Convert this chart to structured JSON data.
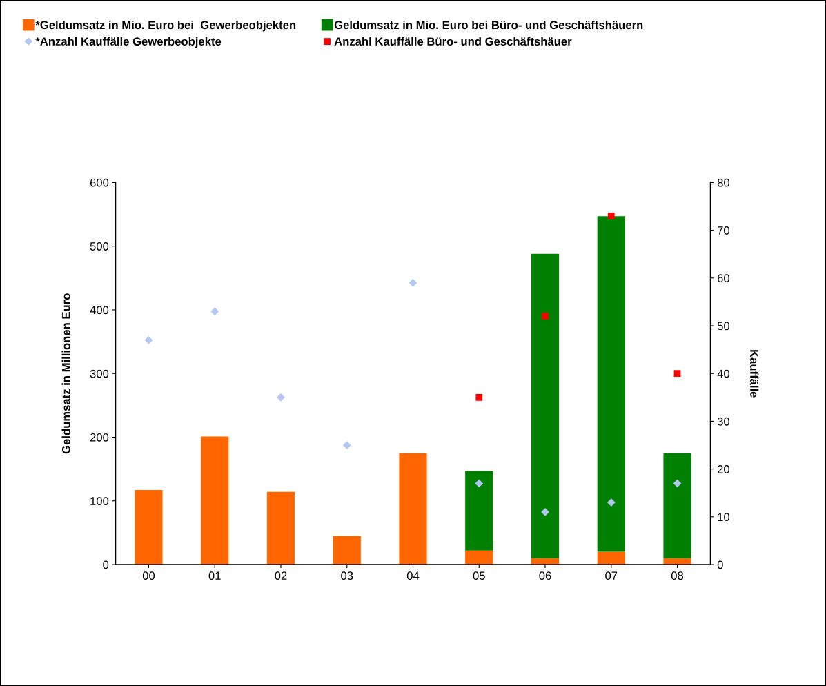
{
  "chart_data": {
    "type": "bar",
    "stacked": true,
    "categories": [
      "00",
      "01",
      "02",
      "03",
      "04",
      "05",
      "06",
      "07",
      "08"
    ],
    "ylabel": "Geldumsatz in Millionen Euro",
    "y2label": "Kauffälle",
    "ylim": [
      0,
      600
    ],
    "yticks": [
      0,
      100,
      200,
      300,
      400,
      500,
      600
    ],
    "y2lim": [
      0,
      80
    ],
    "y2ticks": [
      0,
      10,
      20,
      30,
      40,
      50,
      60,
      70,
      80
    ],
    "grid": false,
    "legend": "top",
    "series": [
      {
        "name": "*Geldumsatz in Mio. Euro bei  Gewerbeobjekten",
        "color": "#ff6600",
        "values": [
          117,
          201,
          114,
          45,
          175,
          22,
          10,
          20,
          10
        ]
      },
      {
        "name": "Geldumsatz in Mio. Euro bei Büro- und Geschäftshäuern",
        "color": "#008000",
        "values": [
          null,
          null,
          null,
          null,
          null,
          125,
          478,
          527,
          165
        ]
      },
      {
        "name": "*Anzahl Kauffälle Gewerbeobjekte",
        "type": "scatter",
        "axis": "y2",
        "marker": "diamond",
        "color": "#b4c7f0",
        "values": [
          47,
          53,
          35,
          25,
          59,
          17,
          11,
          13,
          17
        ]
      },
      {
        "name": "Anzahl Kauffälle Büro- und Geschäftshäuer",
        "type": "scatter",
        "axis": "y2",
        "marker": "square",
        "color": "#ff0000",
        "values": [
          null,
          null,
          null,
          null,
          null,
          35,
          52,
          73,
          40
        ]
      }
    ]
  }
}
